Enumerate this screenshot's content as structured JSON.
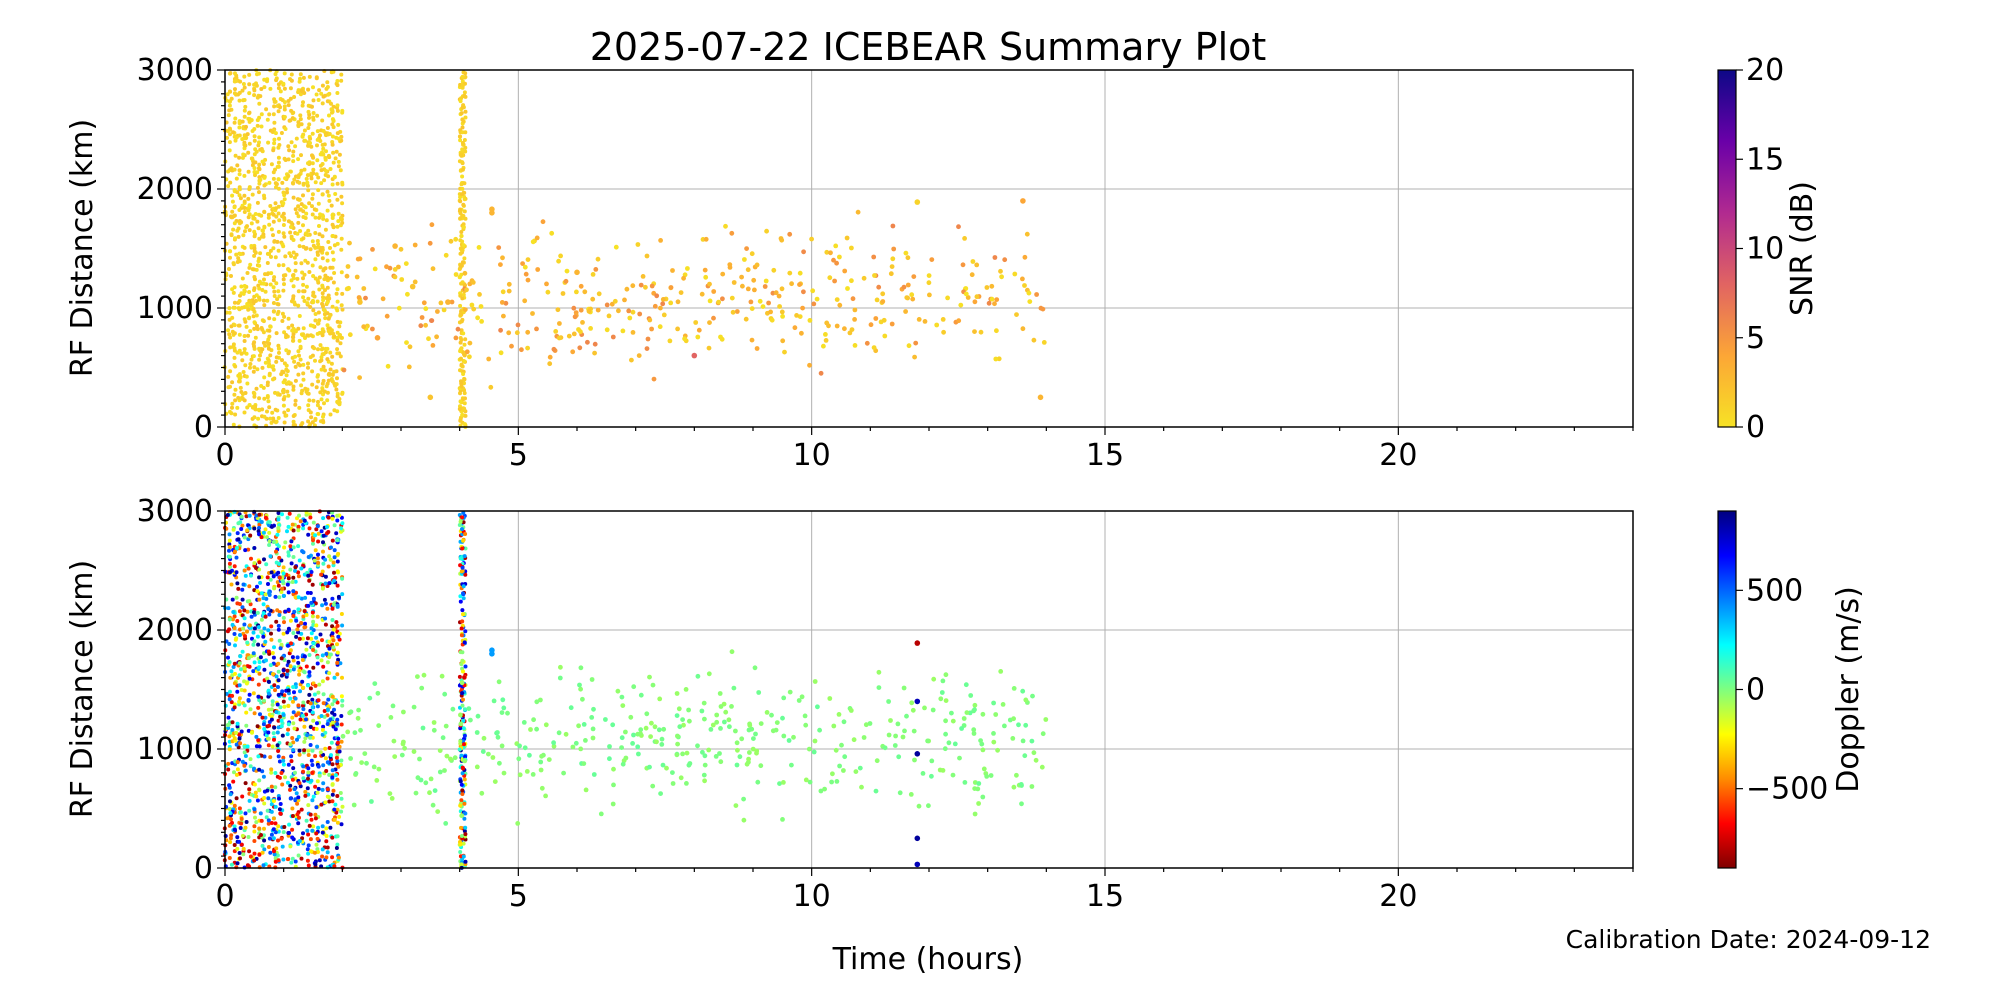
{
  "figure": {
    "title": "2025-07-22 ICEBEAR Summary Plot",
    "xlabel": "Time (hours)",
    "footnote": "Calibration Date: 2024-09-12"
  },
  "chart_data": [
    {
      "type": "scatter",
      "panel": "top",
      "ylabel": "RF Distance (km)",
      "xlim": [
        0,
        24
      ],
      "ylim": [
        0,
        3000
      ],
      "x_ticks": [
        0,
        5,
        10,
        15,
        20
      ],
      "y_ticks": [
        0,
        1000,
        2000,
        3000
      ],
      "grid": true,
      "color_by": "snr",
      "colorbar": {
        "label": "SNR (dB)",
        "range": [
          0,
          20
        ],
        "ticks": [
          0,
          5,
          10,
          15,
          20
        ],
        "colors": [
          "#f7e225",
          "#fca636",
          "#e16462",
          "#b12a90",
          "#6a00a8",
          "#0d0887"
        ]
      },
      "dense_bands": [
        {
          "x_range": [
            0.0,
            2.0
          ],
          "y_range": [
            0,
            3000
          ],
          "snr_range": [
            0,
            2
          ]
        },
        {
          "x_range": [
            4.0,
            4.1
          ],
          "y_range": [
            0,
            3000
          ],
          "snr_range": [
            0,
            2
          ]
        }
      ],
      "scatter_region": {
        "x_range": [
          2.0,
          14.0
        ],
        "y_range": [
          250,
          1900
        ],
        "snr_range": [
          0,
          6
        ]
      },
      "points": [
        {
          "x": 4.55,
          "y": 1800,
          "snr": 3
        },
        {
          "x": 4.55,
          "y": 1830,
          "snr": 3
        },
        {
          "x": 2.3,
          "y": 1050,
          "snr": 2
        },
        {
          "x": 2.6,
          "y": 750,
          "snr": 4
        },
        {
          "x": 2.9,
          "y": 1520,
          "snr": 3
        },
        {
          "x": 3.2,
          "y": 1180,
          "snr": 2
        },
        {
          "x": 3.5,
          "y": 250,
          "snr": 2
        },
        {
          "x": 3.8,
          "y": 1050,
          "snr": 3
        },
        {
          "x": 6.0,
          "y": 1300,
          "snr": 3
        },
        {
          "x": 8.0,
          "y": 600,
          "snr": 8
        },
        {
          "x": 11.8,
          "y": 1890,
          "snr": 1
        },
        {
          "x": 13.6,
          "y": 1900,
          "snr": 4
        },
        {
          "x": 13.9,
          "y": 250,
          "snr": 3
        }
      ]
    },
    {
      "type": "scatter",
      "panel": "bottom",
      "ylabel": "RF Distance (km)",
      "xlim": [
        0,
        24
      ],
      "ylim": [
        0,
        3000
      ],
      "x_ticks": [
        0,
        5,
        10,
        15,
        20
      ],
      "y_ticks": [
        0,
        1000,
        2000,
        3000
      ],
      "grid": true,
      "color_by": "doppler",
      "colorbar": {
        "label": "Doppler (m/s)",
        "range": [
          -900,
          900
        ],
        "ticks": [
          -500,
          0,
          500
        ],
        "tick_labels": [
          "−500",
          "0",
          "500"
        ],
        "colors": [
          "#7f0000",
          "#ff0000",
          "#ff8c00",
          "#ffff00",
          "#7fff7f",
          "#00ffff",
          "#0080ff",
          "#0000ff",
          "#000080"
        ]
      },
      "dense_bands": [
        {
          "x_range": [
            0.0,
            2.0
          ],
          "y_range": [
            0,
            3000
          ],
          "doppler_range": [
            -900,
            900
          ]
        },
        {
          "x_range": [
            4.0,
            4.1
          ],
          "y_range": [
            0,
            3000
          ],
          "doppler_range": [
            -900,
            900
          ]
        }
      ],
      "scatter_region": {
        "x_range": [
          2.0,
          14.0
        ],
        "y_range": [
          250,
          1900
        ],
        "doppler_range": [
          -50,
          50
        ]
      },
      "points": [
        {
          "x": 4.55,
          "y": 1800,
          "doppler": 400
        },
        {
          "x": 4.55,
          "y": 1830,
          "doppler": 400
        },
        {
          "x": 11.8,
          "y": 1890,
          "doppler": -800
        },
        {
          "x": 11.8,
          "y": 1400,
          "doppler": 800
        },
        {
          "x": 11.8,
          "y": 960,
          "doppler": 850
        },
        {
          "x": 11.8,
          "y": 250,
          "doppler": 850
        },
        {
          "x": 11.8,
          "y": 30,
          "doppler": 800
        }
      ]
    }
  ]
}
